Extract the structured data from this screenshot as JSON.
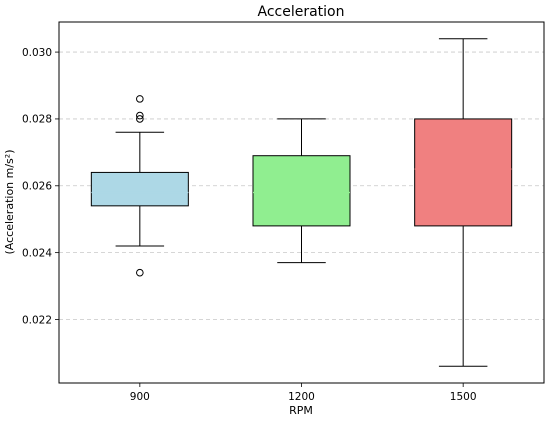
{
  "chart_data": {
    "type": "box",
    "title": "Acceleration",
    "xlabel": "RPM",
    "ylabel": "(Acceleration m/s²)",
    "categories": [
      "900",
      "1200",
      "1500"
    ],
    "ylim": [
      0.0201,
      0.0309
    ],
    "yticks": [
      "0.022",
      "0.024",
      "0.026",
      "0.028",
      "0.030"
    ],
    "ytick_values": [
      0.022,
      0.024,
      0.026,
      0.028,
      0.03
    ],
    "grid": "y-dashed",
    "boxes": [
      {
        "category": "900",
        "color": "#add8e6",
        "whisker_low": 0.0242,
        "q1": 0.0254,
        "median": 0.0258,
        "q3": 0.0264,
        "whisker_high": 0.0276,
        "fliers": [
          0.0234,
          0.028,
          0.0281,
          0.0286
        ]
      },
      {
        "category": "1200",
        "color": "#90ee90",
        "whisker_low": 0.0237,
        "q1": 0.0248,
        "median": 0.0258,
        "q3": 0.0269,
        "whisker_high": 0.028,
        "fliers": []
      },
      {
        "category": "1500",
        "color": "#f08080",
        "whisker_low": 0.0206,
        "q1": 0.0248,
        "median": 0.0265,
        "q3": 0.028,
        "whisker_high": 0.0304,
        "fliers": []
      }
    ]
  }
}
